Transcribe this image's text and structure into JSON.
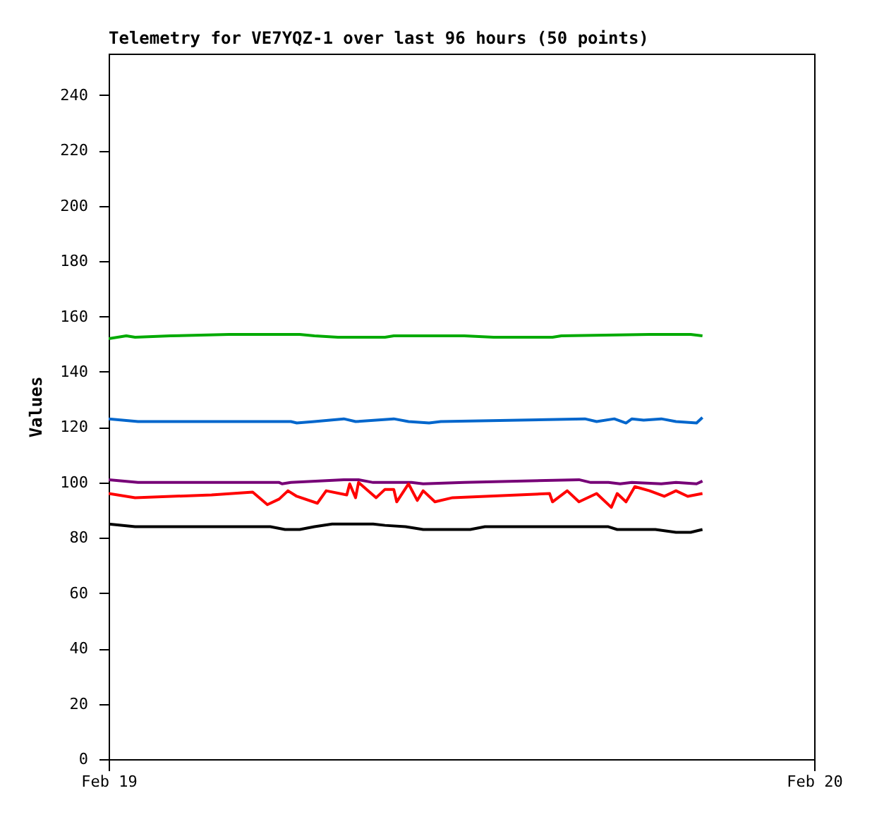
{
  "chart_data": {
    "type": "line",
    "title": "Telemetry for VE7YQZ-1 over last 96 hours (50 points)",
    "ylabel": "Values",
    "xlim": [
      "--02-19",
      "--02-20"
    ],
    "xticks": [
      {
        "value": "--02-19",
        "label": "Feb 19"
      },
      {
        "value": "--02-20",
        "label": "Feb 20"
      }
    ],
    "ylim": [
      0,
      255
    ],
    "yticks": [
      0,
      20,
      40,
      60,
      80,
      100,
      120,
      140,
      160,
      180,
      200,
      220,
      240
    ],
    "grid": false,
    "series": [
      {
        "color": "#00aa00",
        "x": [
          "--02-19T00:00",
          "--02-19T00:36",
          "--02-19T00:54",
          "--02-19T02:06",
          "--02-19T04:06",
          "--02-19T06:30",
          "--02-19T07:00",
          "--02-19T07:48",
          "--02-19T09:24",
          "--02-19T09:42",
          "--02-19T12:06",
          "--02-19T13:06",
          "--02-19T15:06",
          "--02-19T15:24",
          "--02-19T18:24",
          "--02-19T19:48",
          "--02-19T20:12"
        ],
        "values": [
          152,
          153,
          152.5,
          153,
          153.5,
          153.5,
          153,
          152.5,
          152.5,
          153,
          153,
          152.5,
          152.5,
          153,
          153.5,
          153.5,
          153
        ]
      },
      {
        "color": "#0066cc",
        "x": [
          "--02-19T00:00",
          "--02-19T01:00",
          "--02-19T06:12",
          "--02-19T06:24",
          "--02-19T07:00",
          "--02-19T08:00",
          "--02-19T08:24",
          "--02-19T09:42",
          "--02-19T10:12",
          "--02-19T10:54",
          "--02-19T11:18",
          "--02-19T16:12",
          "--02-19T16:36",
          "--02-19T17:12",
          "--02-19T17:36",
          "--02-19T17:48",
          "--02-19T18:12",
          "--02-19T18:48",
          "--02-19T19:18",
          "--02-19T20:00",
          "--02-19T20:12"
        ],
        "values": [
          123,
          122,
          122,
          121.5,
          122,
          123,
          122,
          123,
          122,
          121.5,
          122,
          123,
          122,
          123,
          121.5,
          123,
          122.5,
          123,
          122,
          121.5,
          123.5
        ]
      },
      {
        "color": "#770077",
        "x": [
          "--02-19T00:00",
          "--02-19T01:00",
          "--02-19T05:48",
          "--02-19T05:54",
          "--02-19T06:12",
          "--02-19T08:00",
          "--02-19T08:30",
          "--02-19T09:00",
          "--02-19T10:18",
          "--02-19T10:42",
          "--02-19T12:06",
          "--02-19T16:00",
          "--02-19T16:24",
          "--02-19T17:00",
          "--02-19T17:24",
          "--02-19T17:48",
          "--02-19T18:48",
          "--02-19T19:18",
          "--02-19T20:00",
          "--02-19T20:12"
        ],
        "values": [
          101,
          100,
          100,
          99.5,
          100,
          101,
          101,
          100,
          100,
          99.5,
          100,
          101,
          100,
          100,
          99.5,
          100,
          99.5,
          100,
          99.5,
          100.5
        ]
      },
      {
        "color": "#ff0000",
        "x": [
          "--02-19T00:00",
          "--02-19T00:54",
          "--02-19T03:30",
          "--02-19T04:54",
          "--02-19T05:24",
          "--02-19T05:48",
          "--02-19T06:06",
          "--02-19T06:24",
          "--02-19T07:06",
          "--02-19T07:24",
          "--02-19T08:06",
          "--02-19T08:12",
          "--02-19T08:24",
          "--02-19T08:30",
          "--02-19T09:06",
          "--02-19T09:24",
          "--02-19T09:42",
          "--02-19T09:48",
          "--02-19T10:12",
          "--02-19T10:30",
          "--02-19T10:42",
          "--02-19T11:06",
          "--02-19T11:42",
          "--02-19T15:00",
          "--02-19T15:06",
          "--02-19T15:36",
          "--02-19T16:00",
          "--02-19T16:36",
          "--02-19T17:06",
          "--02-19T17:18",
          "--02-19T17:36",
          "--02-19T17:54",
          "--02-19T18:24",
          "--02-19T18:54",
          "--02-19T19:18",
          "--02-19T19:42",
          "--02-19T20:12"
        ],
        "values": [
          96,
          94.5,
          95.5,
          96.5,
          92,
          94,
          97,
          95,
          92.5,
          97,
          95.5,
          99.5,
          94.5,
          100,
          94.5,
          97.5,
          97.5,
          93,
          99.5,
          93.5,
          97,
          93,
          94.5,
          96,
          93,
          97,
          93,
          96,
          91,
          96,
          93,
          98.5,
          97,
          95,
          97,
          95,
          96
        ]
      },
      {
        "color": "#000000",
        "x": [
          "--02-19T00:00",
          "--02-19T00:54",
          "--02-19T05:30",
          "--02-19T06:00",
          "--02-19T06:30",
          "--02-19T07:00",
          "--02-19T07:36",
          "--02-19T09:00",
          "--02-19T09:24",
          "--02-19T10:06",
          "--02-19T10:42",
          "--02-19T12:18",
          "--02-19T12:48",
          "--02-19T17:00",
          "--02-19T17:18",
          "--02-19T18:36",
          "--02-19T19:18",
          "--02-19T19:48",
          "--02-19T20:12"
        ],
        "values": [
          85,
          84,
          84,
          83,
          83,
          84,
          85,
          85,
          84.5,
          84,
          83,
          83,
          84,
          84,
          83,
          83,
          82,
          82,
          83
        ]
      }
    ]
  }
}
